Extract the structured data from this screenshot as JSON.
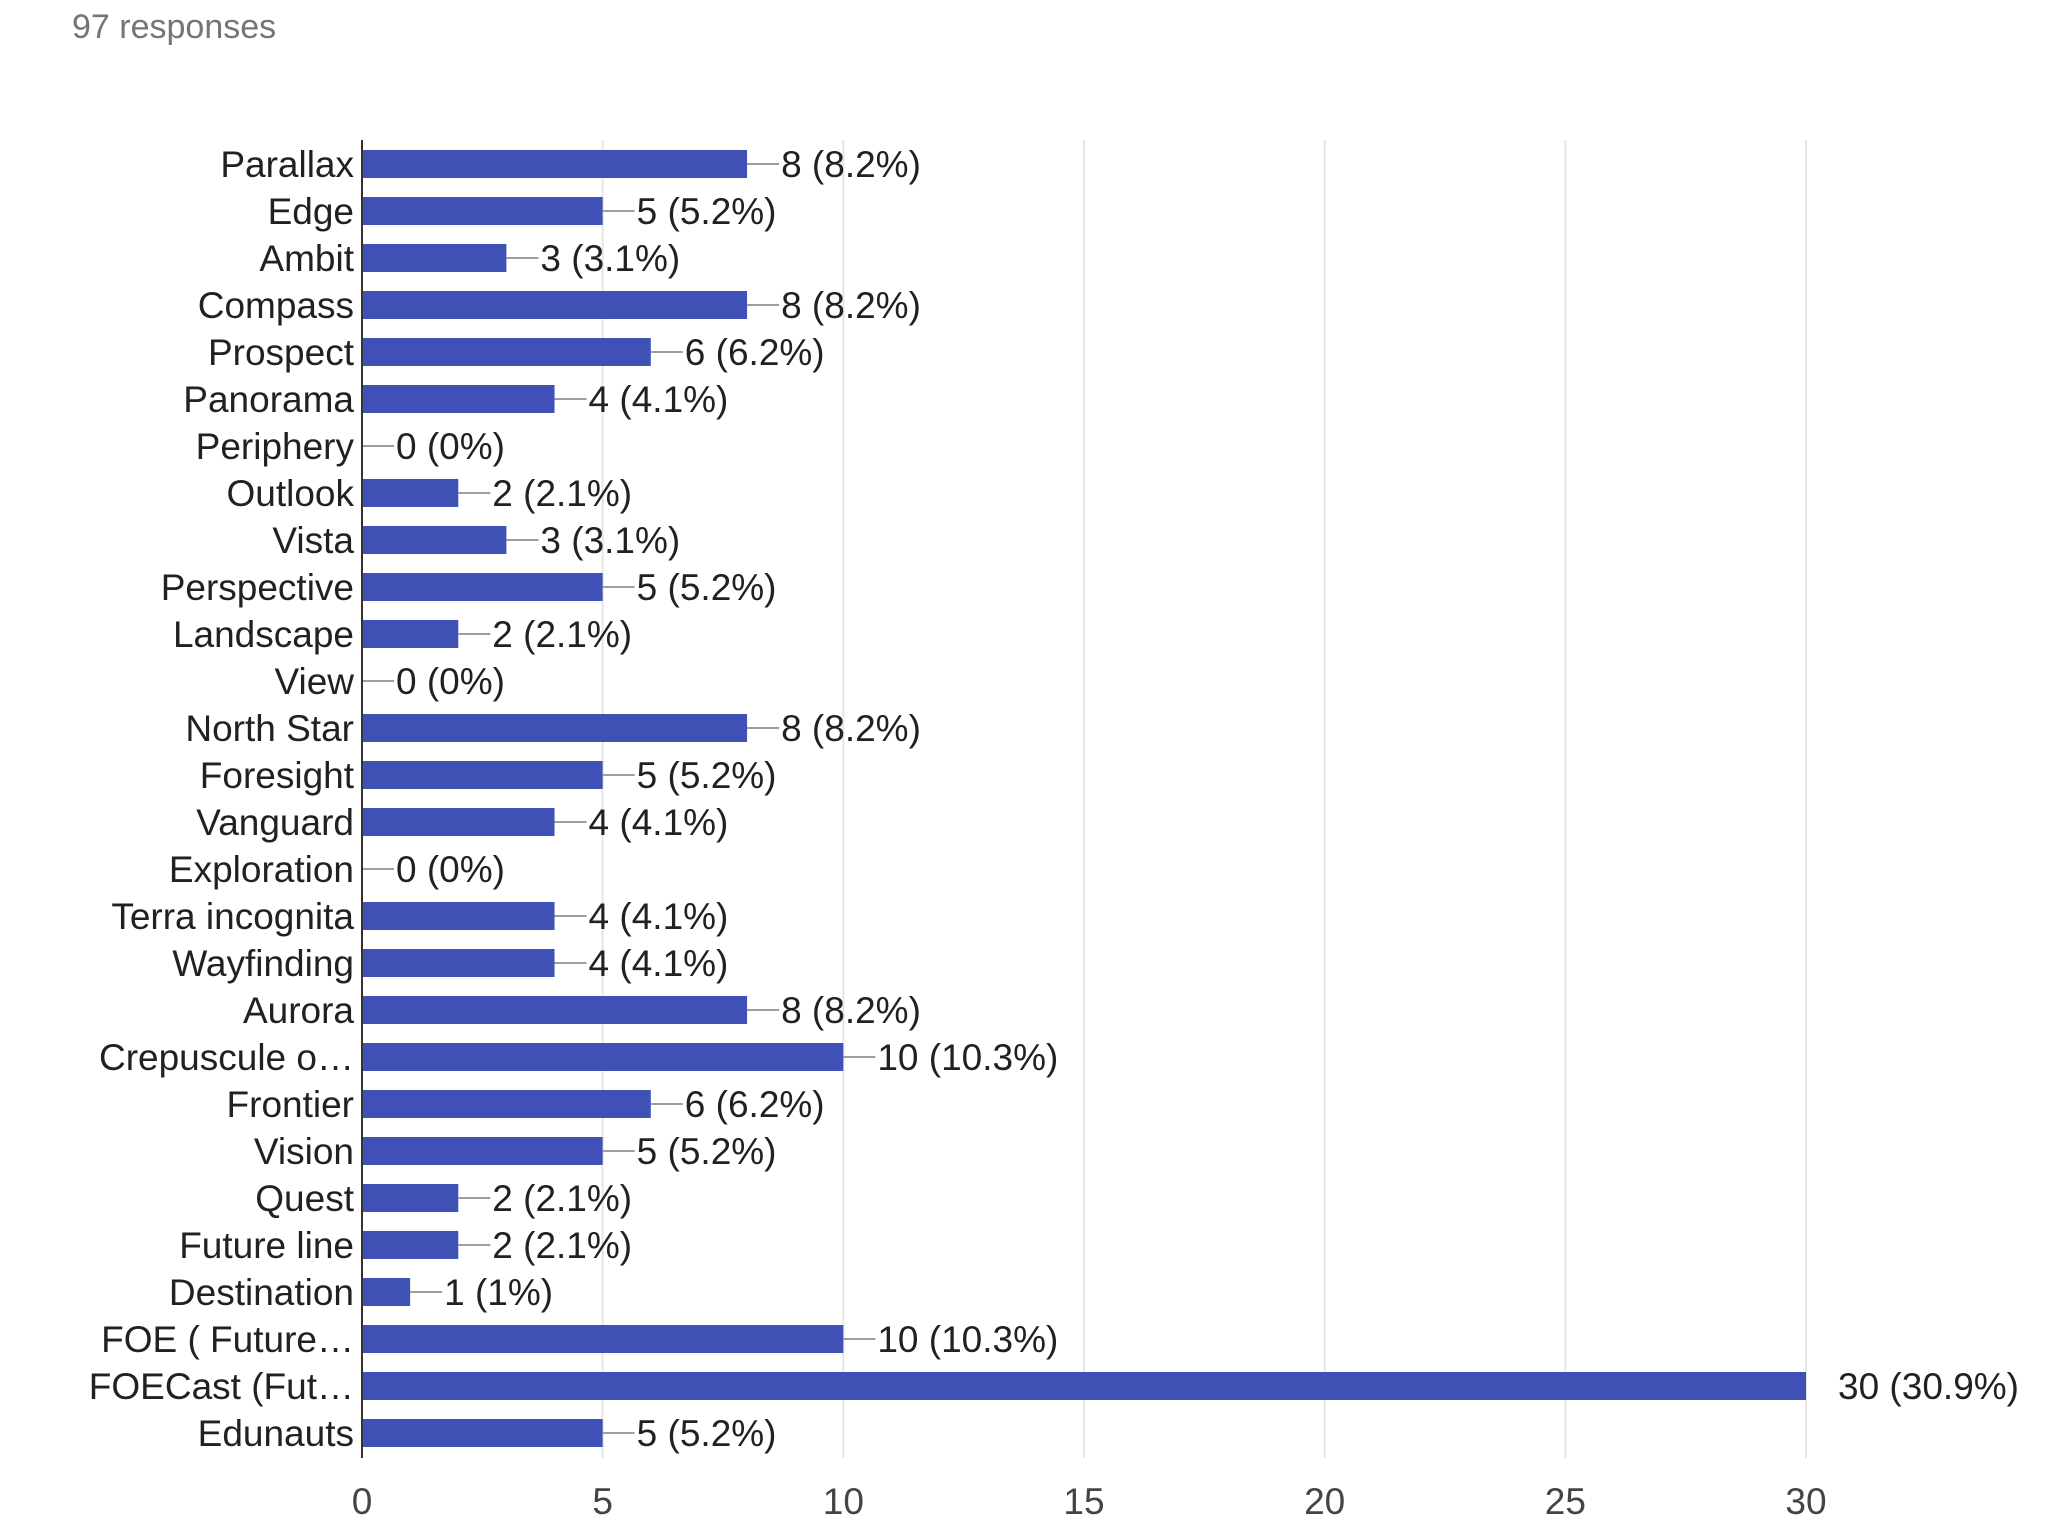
{
  "header": {
    "responses": "97 responses"
  },
  "chart_data": {
    "type": "bar",
    "orientation": "horizontal",
    "categories": [
      "Parallax",
      "Edge",
      "Ambit",
      "Compass",
      "Prospect",
      "Panorama",
      "Periphery",
      "Outlook",
      "Vista",
      "Perspective",
      "Landscape",
      "View",
      "North Star",
      "Foresight",
      "Vanguard",
      "Exploration",
      "Terra incognita",
      "Wayfinding",
      "Aurora",
      "Crepuscule o…",
      "Frontier",
      "Vision",
      "Quest",
      "Future line",
      "Destination",
      "FOE ( Future…",
      "FOECast (Fut…",
      "Edunauts"
    ],
    "values": [
      8,
      5,
      3,
      8,
      6,
      4,
      0,
      2,
      3,
      5,
      2,
      0,
      8,
      5,
      4,
      0,
      4,
      4,
      8,
      10,
      6,
      5,
      2,
      2,
      1,
      10,
      30,
      5
    ],
    "value_labels": [
      "8 (8.2%)",
      "5 (5.2%)",
      "3 (3.1%)",
      "8 (8.2%)",
      "6 (6.2%)",
      "4 (4.1%)",
      "0 (0%)",
      "2 (2.1%)",
      "3 (3.1%)",
      "5 (5.2%)",
      "2 (2.1%)",
      "0 (0%)",
      "8 (8.2%)",
      "5 (5.2%)",
      "4 (4.1%)",
      "0 (0%)",
      "4 (4.1%)",
      "4 (4.1%)",
      "8 (8.2%)",
      "10 (10.3%)",
      "6 (6.2%)",
      "5 (5.2%)",
      "2 (2.1%)",
      "2 (2.1%)",
      "1 (1%)",
      "10 (10.3%)",
      "30 (30.9%)",
      "5 (5.2%)"
    ],
    "x_ticks": [
      "0",
      "5",
      "10",
      "15",
      "20",
      "25",
      "30"
    ],
    "xlim": [
      0,
      30
    ],
    "grid": true,
    "bar_color": "#3f51b5",
    "grid_color": "#e6e6e6",
    "label_line_color": "#9e9e9e"
  }
}
